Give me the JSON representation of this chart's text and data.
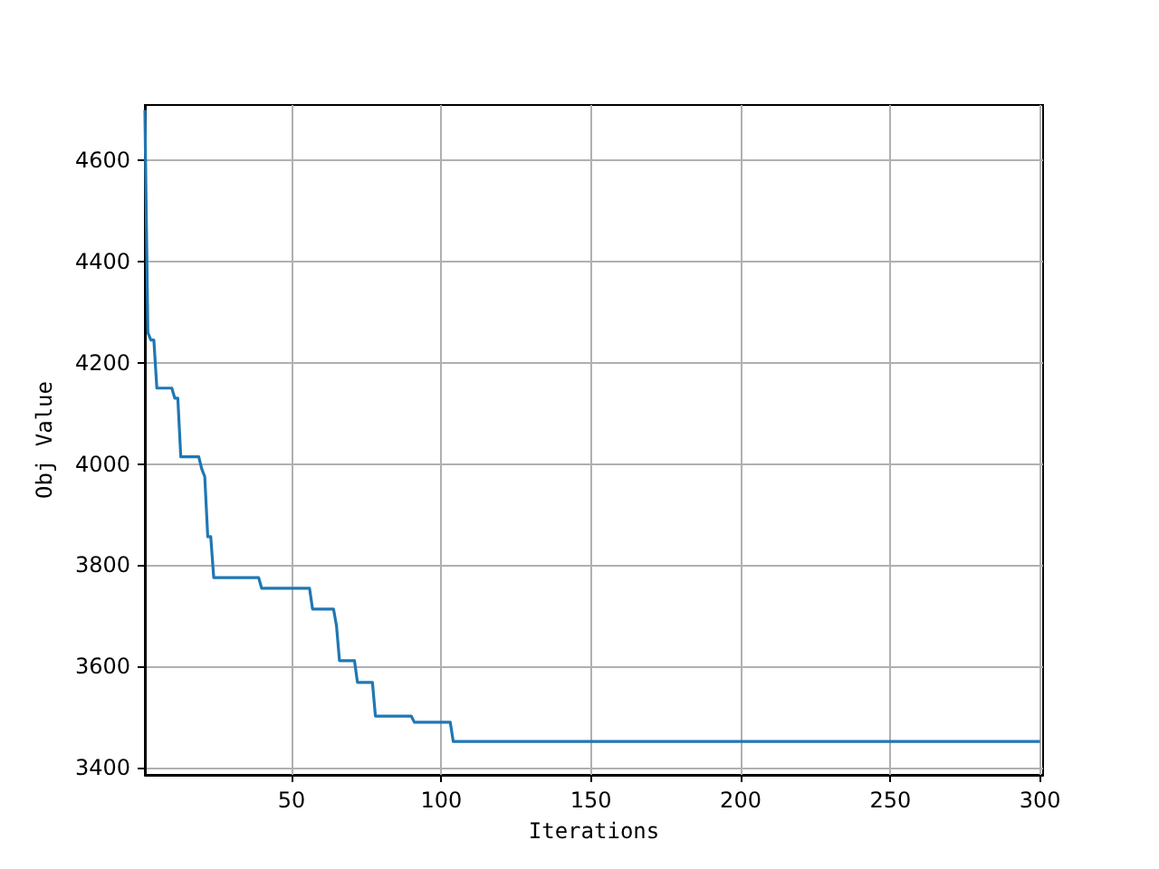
{
  "chart_data": {
    "type": "line",
    "xlabel": "Iterations",
    "ylabel": "Obj Value",
    "xlim": [
      1,
      301
    ],
    "xticks": [
      50,
      100,
      150,
      200,
      250,
      300
    ],
    "ylim": [
      3385,
      4710
    ],
    "yticks": [
      3400,
      3600,
      3800,
      4000,
      4200,
      4400,
      4600
    ],
    "grid": true,
    "marker": "none",
    "line_style": "solid",
    "series": [
      {
        "color": "#1f77b4",
        "x": [
          1,
          2,
          3,
          4,
          5,
          10,
          11,
          12,
          13,
          19,
          20,
          21,
          22,
          23,
          24,
          39,
          40,
          56,
          57,
          64,
          65,
          66,
          71,
          72,
          77,
          78,
          90,
          91,
          103,
          104,
          300
        ],
        "values": [
          4700,
          4260,
          4245,
          4245,
          4150,
          4150,
          4130,
          4130,
          4014,
          4014,
          3990,
          3975,
          3856,
          3856,
          3775,
          3775,
          3754,
          3754,
          3713,
          3713,
          3680,
          3611,
          3611,
          3568,
          3568,
          3501,
          3501,
          3489,
          3489,
          3451,
          3451
        ]
      }
    ]
  }
}
